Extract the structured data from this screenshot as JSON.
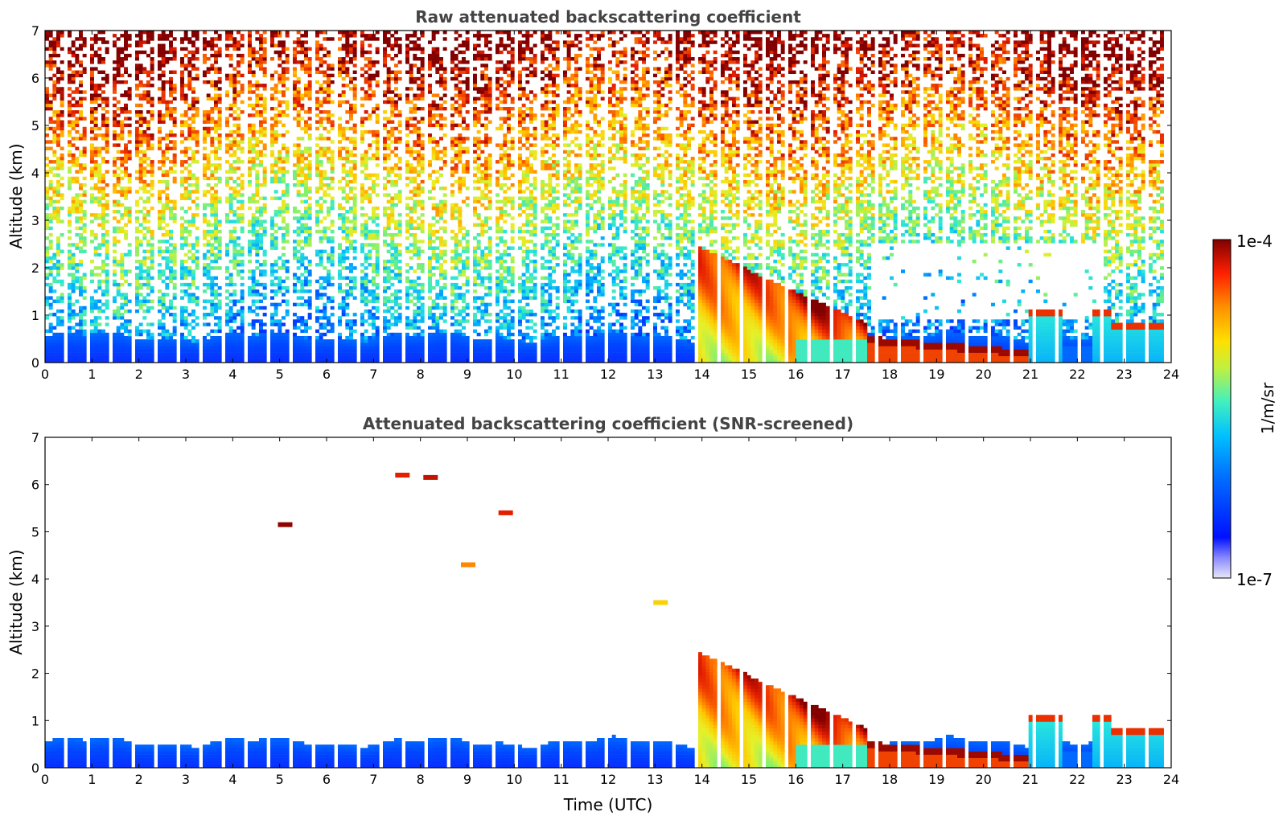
{
  "chart_data": [
    {
      "type": "heatmap",
      "title": "Raw attenuated backscattering coefficient",
      "xlabel": "",
      "ylabel": "Altitude (km)",
      "xlim": [
        0,
        24
      ],
      "ylim": [
        0,
        7
      ],
      "x_ticks": [
        "0",
        "1",
        "2",
        "3",
        "4",
        "5",
        "6",
        "7",
        "8",
        "9",
        "10",
        "11",
        "12",
        "13",
        "14",
        "15",
        "16",
        "17",
        "18",
        "19",
        "20",
        "21",
        "22",
        "23",
        "24"
      ],
      "y_ticks": [
        "0",
        "1",
        "2",
        "3",
        "4",
        "5",
        "6",
        "7"
      ],
      "colormap": "jet",
      "screened": false
    },
    {
      "type": "heatmap",
      "title": "Attenuated backscattering coefficient (SNR-screened)",
      "xlabel": "Time (UTC)",
      "ylabel": "Altitude (km)",
      "xlim": [
        0,
        24
      ],
      "ylim": [
        0,
        7
      ],
      "x_ticks": [
        "0",
        "1",
        "2",
        "3",
        "4",
        "5",
        "6",
        "7",
        "8",
        "9",
        "10",
        "11",
        "12",
        "13",
        "14",
        "15",
        "16",
        "17",
        "18",
        "19",
        "20",
        "21",
        "22",
        "23",
        "24"
      ],
      "y_ticks": [
        "0",
        "1",
        "2",
        "3",
        "4",
        "5",
        "6",
        "7"
      ],
      "colormap": "jet",
      "screened": true
    }
  ],
  "colorbar": {
    "label": "1/m/sr",
    "max_label": "1e-4",
    "min_label": "1e-7",
    "scale": "log",
    "colors": [
      "#e8e8f8",
      "#0010ff",
      "#00b0ff",
      "#40f0c0",
      "#e0f040",
      "#ff9000",
      "#ff2000",
      "#800000"
    ]
  },
  "features": {
    "boundary_layer_top_km": 0.55,
    "cloud_descent_start_utc": 13.8,
    "cloud_top_at_start_km": 2.5,
    "low_cloud_km": 0.3,
    "data_gap_utc": [
      21.7,
      22.3
    ]
  }
}
